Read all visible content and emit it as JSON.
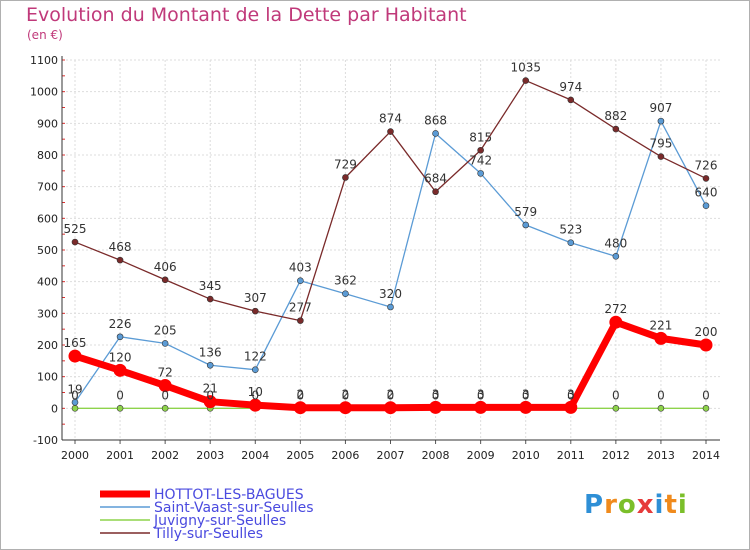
{
  "title": "Evolution du Montant de la Dette par Habitant",
  "unit_label": "(en €)",
  "logo": {
    "text": "Proxiti",
    "colors": [
      "#2e8fd6",
      "#f08a1c",
      "#7bbf2a",
      "#e63b3b",
      "#2e8fd6",
      "#f08a1c",
      "#7bbf2a"
    ]
  },
  "chart_data": {
    "type": "line",
    "title": "Evolution du Montant de la Dette par Habitant",
    "ylabel": "(en €)",
    "xlabel": "",
    "x": [
      "2000",
      "2001",
      "2002",
      "2003",
      "2004",
      "2005",
      "2006",
      "2007",
      "2008",
      "2009",
      "2010",
      "2011",
      "2012",
      "2013",
      "2014"
    ],
    "ylim": [
      -100,
      1100
    ],
    "yticks": [
      -100,
      0,
      100,
      200,
      300,
      400,
      500,
      600,
      700,
      800,
      900,
      1000,
      1100
    ],
    "grid": true,
    "legend": "bottom-left",
    "series": [
      {
        "name": "HOTTOT-LES-BAGUES",
        "color": "#ff0000",
        "width": 7,
        "marker": 6,
        "values": [
          165,
          120,
          72,
          21,
          10,
          2,
          2,
          2,
          3,
          3,
          3,
          3,
          272,
          221,
          200
        ],
        "labels": [
          "165",
          "120",
          "72",
          "21",
          "10",
          "2",
          "2",
          "2",
          "3",
          "3",
          "3",
          "3",
          "272",
          "221",
          "200"
        ]
      },
      {
        "name": "Saint-Vaast-sur-Seulles",
        "color": "#5b9bd5",
        "width": 1.3,
        "marker": 3,
        "values": [
          19,
          226,
          205,
          136,
          122,
          403,
          362,
          320,
          868,
          742,
          579,
          523,
          480,
          907,
          640
        ],
        "labels": [
          "19",
          "226",
          "205",
          "136",
          "122",
          "403",
          "362",
          "320",
          "868",
          "742",
          "579",
          "523",
          "480",
          "907",
          "640"
        ]
      },
      {
        "name": "Juvigny-sur-Seulles",
        "color": "#8ed34b",
        "width": 1.3,
        "marker": 3,
        "values": [
          0,
          0,
          0,
          0,
          0,
          0,
          0,
          0,
          0,
          0,
          0,
          0,
          0,
          0,
          0
        ],
        "labels": [
          "0",
          "0",
          "0",
          "0",
          "0",
          "0",
          "0",
          "0",
          "0",
          "0",
          "0",
          "0",
          "0",
          "0",
          "0"
        ]
      },
      {
        "name": "Tilly-sur-Seulles",
        "color": "#7a2a2a",
        "width": 1.3,
        "marker": 3,
        "values": [
          525,
          468,
          406,
          345,
          307,
          277,
          729,
          874,
          684,
          815,
          1035,
          974,
          882,
          795,
          726
        ],
        "labels": [
          "525",
          "468",
          "406",
          "345",
          "307",
          "277",
          "729",
          "874",
          "684",
          "815",
          "1035",
          "974",
          "882",
          "795",
          "726"
        ]
      }
    ]
  }
}
